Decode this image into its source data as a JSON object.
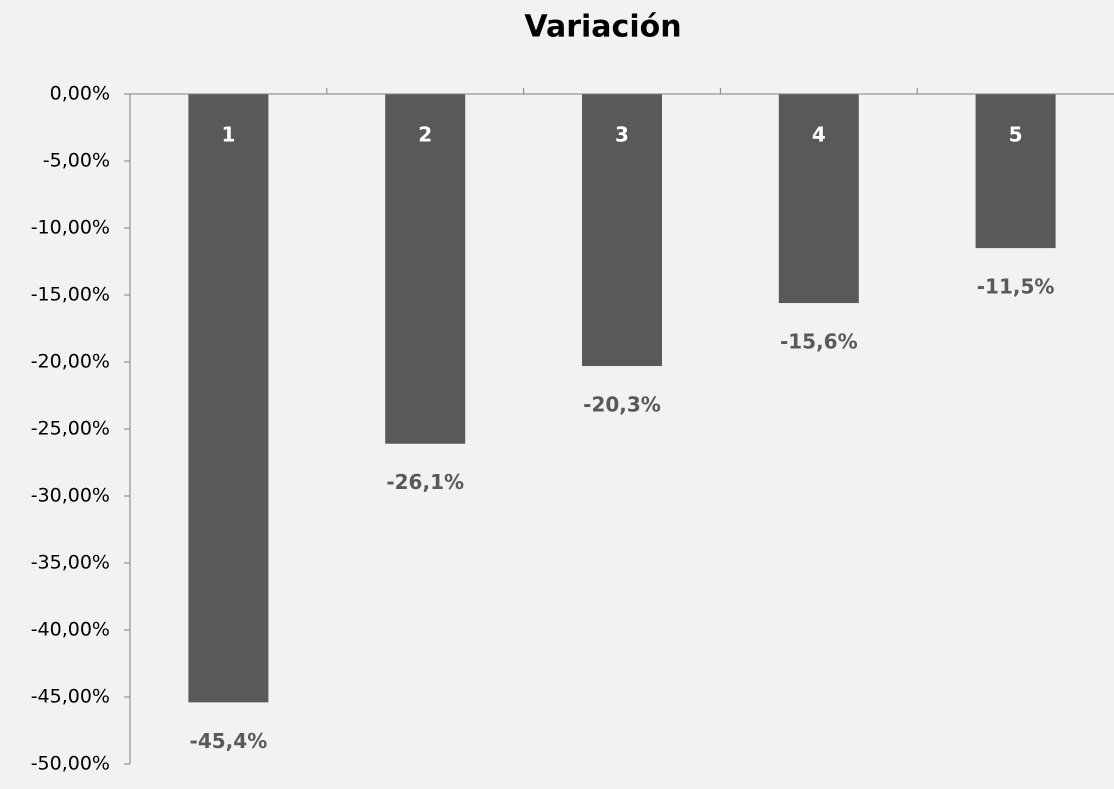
{
  "chart_data": {
    "type": "bar",
    "title": "Variación",
    "categories": [
      "1",
      "2",
      "3",
      "4",
      "5"
    ],
    "values": [
      -45.4,
      -26.1,
      -20.3,
      -15.6,
      -11.5
    ],
    "value_labels": [
      "-45,4%",
      "-26,1%",
      "-20,3%",
      "-15,6%",
      "-11,5%"
    ],
    "color": "#595959",
    "ylim": [
      -50,
      0
    ],
    "yticks": [
      {
        "value": 0,
        "label": "0,00%"
      },
      {
        "value": -5,
        "label": "-5,00%"
      },
      {
        "value": -10,
        "label": "-10,00%"
      },
      {
        "value": -15,
        "label": "-15,00%"
      },
      {
        "value": -20,
        "label": "-20,00%"
      },
      {
        "value": -25,
        "label": "-25,00%"
      },
      {
        "value": -30,
        "label": "-30,00%"
      },
      {
        "value": -35,
        "label": "-35,00%"
      },
      {
        "value": -40,
        "label": "-40,00%"
      },
      {
        "value": -45,
        "label": "-45,00%"
      },
      {
        "value": -50,
        "label": "-50,00%"
      }
    ],
    "grid": false
  }
}
